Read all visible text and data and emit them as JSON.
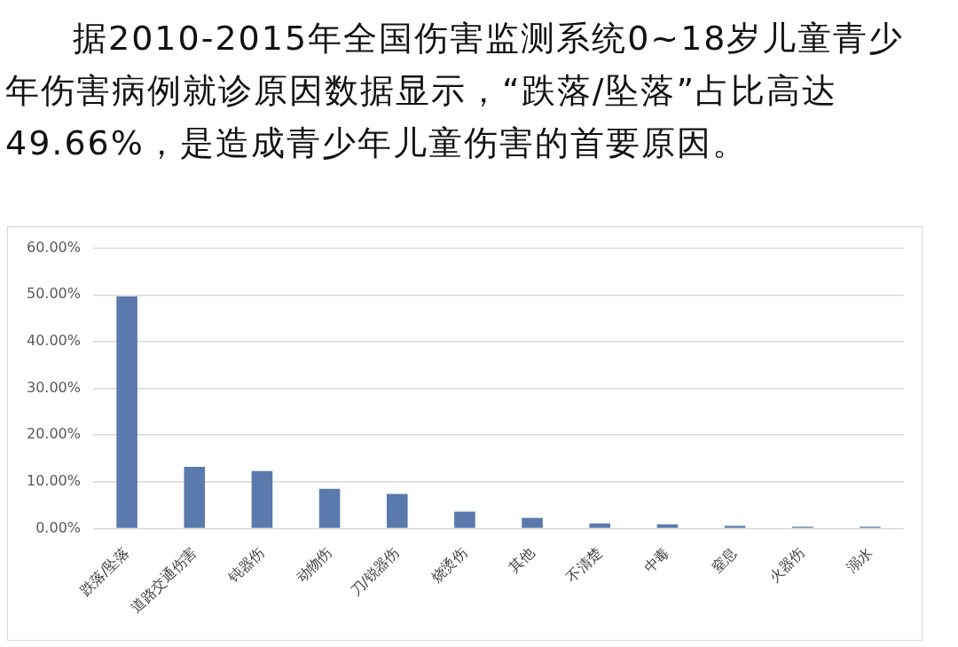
{
  "chart_data": {
    "type": "bar",
    "title": "据2010-2015年全国伤害监测系统0~18岁儿童青少年伤害病例就诊原因数据显示，“跌落/坠落”占比高达49.66%，是造成青少年儿童伤害的首要原因。",
    "categories": [
      "跌落/坠落",
      "道路交通伤害",
      "钝器伤",
      "动物伤",
      "刀/锐器伤",
      "烧烫伤",
      "其他",
      "不清楚",
      "中毒",
      "窒息",
      "火器伤",
      "溺水"
    ],
    "values": [
      49.66,
      13.2,
      12.3,
      8.5,
      7.4,
      3.6,
      2.3,
      1.1,
      0.9,
      0.6,
      0.4,
      0.4
    ],
    "color": "#5a7aae",
    "ylim": [
      0,
      60
    ],
    "yticks": [
      {
        "value": 0,
        "label": "0.00%"
      },
      {
        "value": 10,
        "label": "10.00%"
      },
      {
        "value": 20,
        "label": "20.00%"
      },
      {
        "value": 30,
        "label": "30.00%"
      },
      {
        "value": 40,
        "label": "40.00%"
      },
      {
        "value": 50,
        "label": "50.00%"
      },
      {
        "value": 60,
        "label": "60.00%"
      }
    ],
    "grid": "y"
  }
}
